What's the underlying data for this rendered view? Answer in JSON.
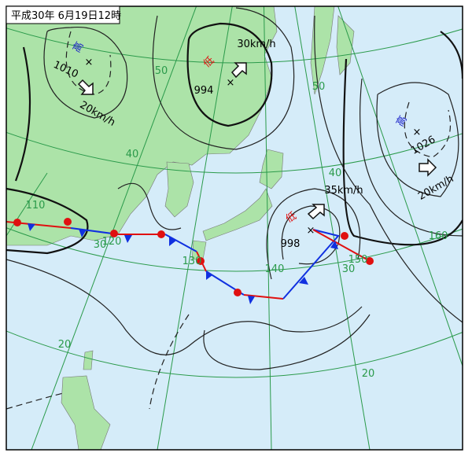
{
  "title": "平成30年 6月19日12時",
  "systems": [
    {
      "kind": "高",
      "pressure": 1010,
      "motion": "20km/h"
    },
    {
      "kind": "低",
      "pressure": 994,
      "motion": "30km/h"
    },
    {
      "kind": "高",
      "pressure": 1026,
      "motion": "20km/h"
    },
    {
      "kind": "低",
      "pressure": 998,
      "motion": "35km/h"
    }
  ],
  "latitude_labels": [
    50,
    40,
    30,
    20,
    50,
    40,
    30,
    20
  ],
  "longitude_labels": [
    110,
    120,
    130,
    140,
    150,
    160
  ]
}
